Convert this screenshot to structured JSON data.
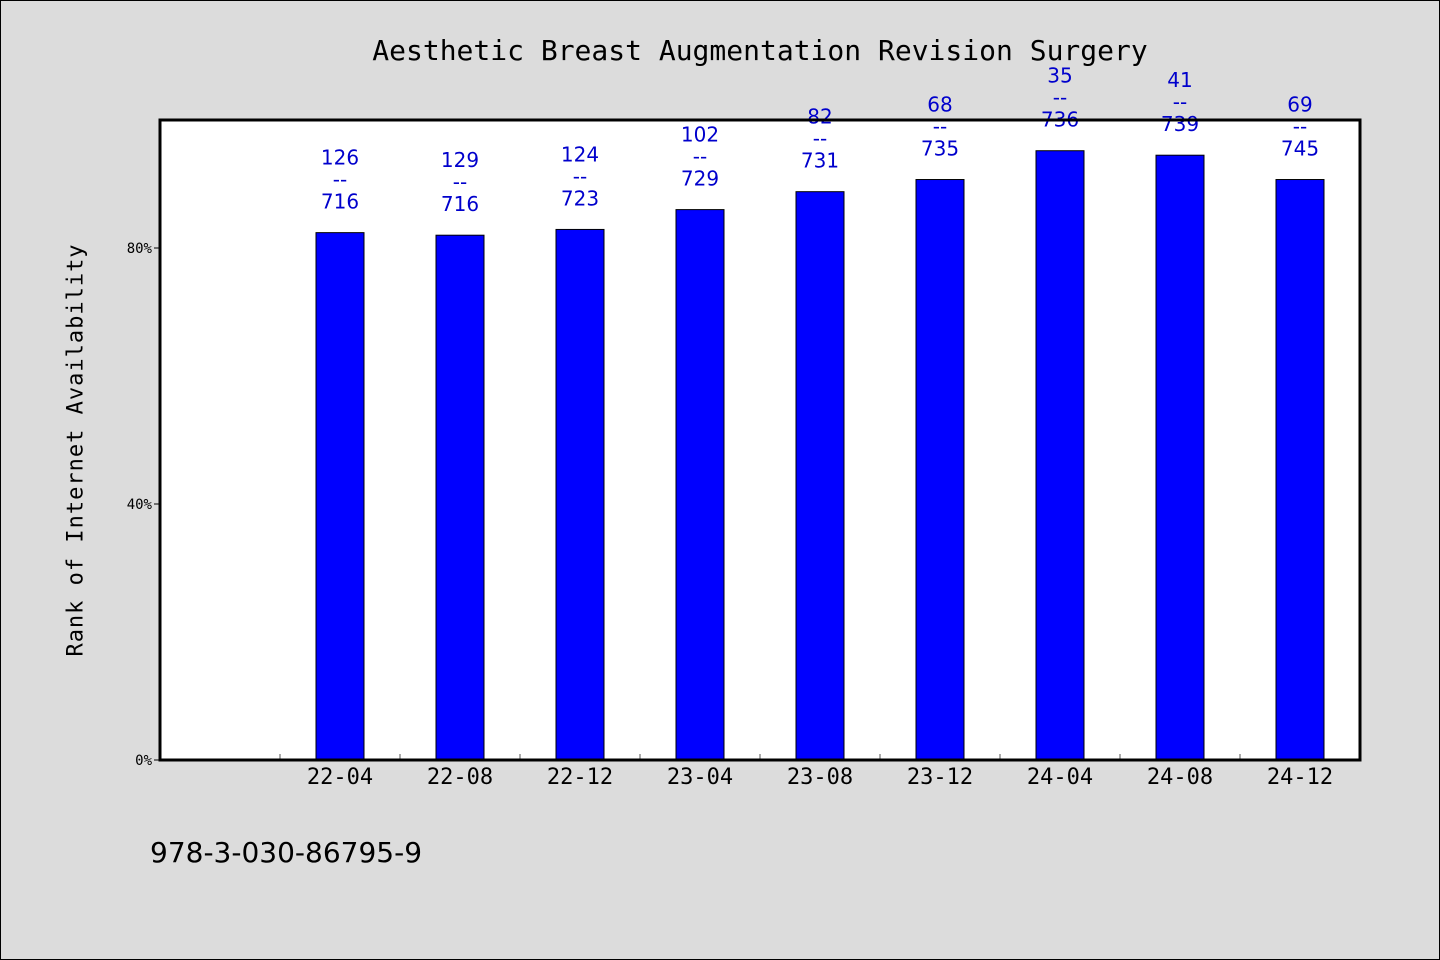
{
  "chart_data": {
    "type": "bar",
    "title": "Aesthetic Breast Augmentation Revision Surgery",
    "ylabel": "Rank of Internet Availability",
    "xlabel": "",
    "categories": [
      "22-04",
      "22-08",
      "22-12",
      "23-04",
      "23-08",
      "23-12",
      "24-04",
      "24-08",
      "24-12"
    ],
    "values": [
      82.4,
      82.0,
      82.9,
      86.0,
      88.8,
      90.7,
      95.2,
      94.5,
      90.7
    ],
    "ranks": [
      "126",
      "129",
      "124",
      "102",
      "82",
      "68",
      "35",
      "41",
      "69"
    ],
    "totals": [
      "716",
      "716",
      "723",
      "729",
      "731",
      "735",
      "736",
      "739",
      "745"
    ],
    "label_separator": "--",
    "ylim": [
      0,
      100
    ],
    "yticks": [
      0,
      40,
      80
    ],
    "ytick_labels": [
      "0%",
      "40%",
      "80%"
    ],
    "bar_color": "#0000ff",
    "label_color": "#0000cc",
    "grid": false
  },
  "footer": {
    "isbn": "978-3-030-86795-9"
  }
}
